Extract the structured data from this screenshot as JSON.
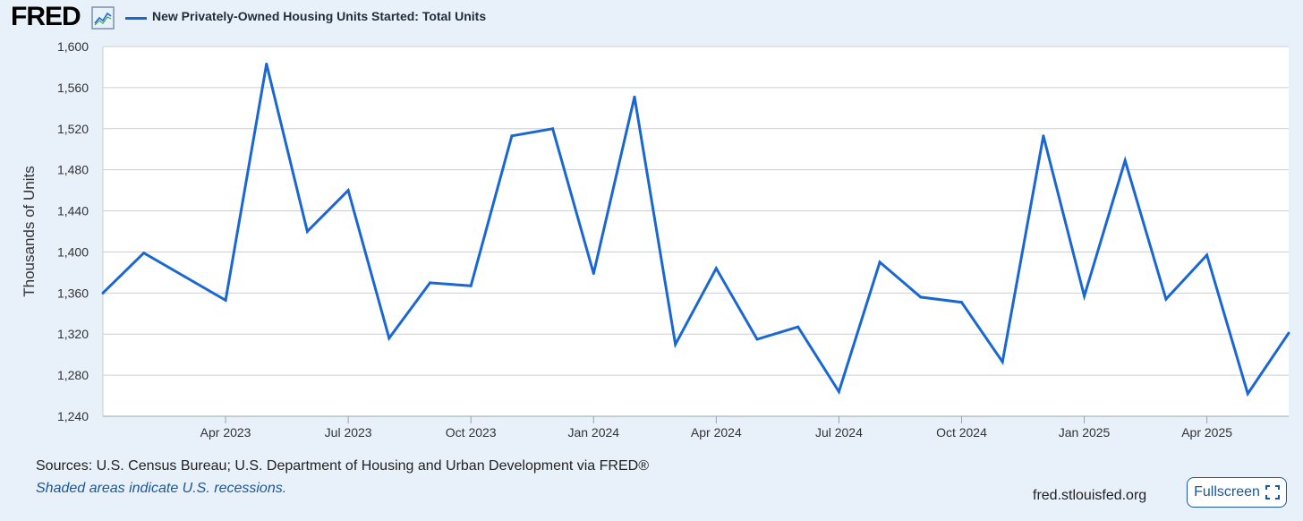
{
  "header": {
    "logo_text": "FRED",
    "logo_icon": "line-chart-icon",
    "legend_label": "New Privately-Owned Housing Units Started: Total Units"
  },
  "colors": {
    "series": "#1967d2",
    "background": "#e8f1fa",
    "plot_background": "#ffffff",
    "link": "#1a5799"
  },
  "chart_data": {
    "type": "line",
    "title": "",
    "xlabel": "",
    "ylabel": "Thousands of Units",
    "ylim": [
      1240,
      1600
    ],
    "yticks": [
      1240,
      1280,
      1320,
      1360,
      1400,
      1440,
      1480,
      1520,
      1560,
      1600
    ],
    "ytick_labels": [
      "1,240",
      "1,280",
      "1,320",
      "1,360",
      "1,400",
      "1,440",
      "1,480",
      "1,520",
      "1,560",
      "1,600"
    ],
    "xlim": [
      "2023-01",
      "2025-06"
    ],
    "xticks": [
      "2023-04",
      "2023-07",
      "2023-10",
      "2024-01",
      "2024-04",
      "2024-07",
      "2024-10",
      "2025-01",
      "2025-04"
    ],
    "xtick_labels": [
      "Apr 2023",
      "Jul 2023",
      "Oct 2023",
      "Jan 2024",
      "Apr 2024",
      "Jul 2024",
      "Oct 2024",
      "Jan 2025",
      "Apr 2025"
    ],
    "grid": true,
    "legend": "top-left",
    "series": [
      {
        "name": "New Privately-Owned Housing Units Started: Total Units",
        "x": [
          "2023-01",
          "2023-02",
          "2023-03",
          "2023-04",
          "2023-05",
          "2023-06",
          "2023-07",
          "2023-08",
          "2023-09",
          "2023-10",
          "2023-11",
          "2023-12",
          "2024-01",
          "2024-02",
          "2024-03",
          "2024-04",
          "2024-05",
          "2024-06",
          "2024-07",
          "2024-08",
          "2024-09",
          "2024-10",
          "2024-11",
          "2024-12",
          "2025-01",
          "2025-02",
          "2025-03",
          "2025-04",
          "2025-05",
          "2025-06"
        ],
        "values": [
          1360,
          1399,
          1376,
          1353,
          1583,
          1420,
          1460,
          1316,
          1370,
          1367,
          1513,
          1520,
          1379,
          1551,
          1310,
          1384,
          1315,
          1327,
          1264,
          1390,
          1356,
          1351,
          1293,
          1513,
          1357,
          1489,
          1354,
          1397,
          1262,
          1321
        ]
      }
    ]
  },
  "footer": {
    "sources": "Sources: U.S. Census Bureau; U.S. Department of Housing and Urban Development via FRED®",
    "recession_note": "Shaded areas indicate U.S. recessions.",
    "site": "fred.stlouisfed.org",
    "fullscreen_label": "Fullscreen",
    "fullscreen_icon": "expand-icon"
  }
}
